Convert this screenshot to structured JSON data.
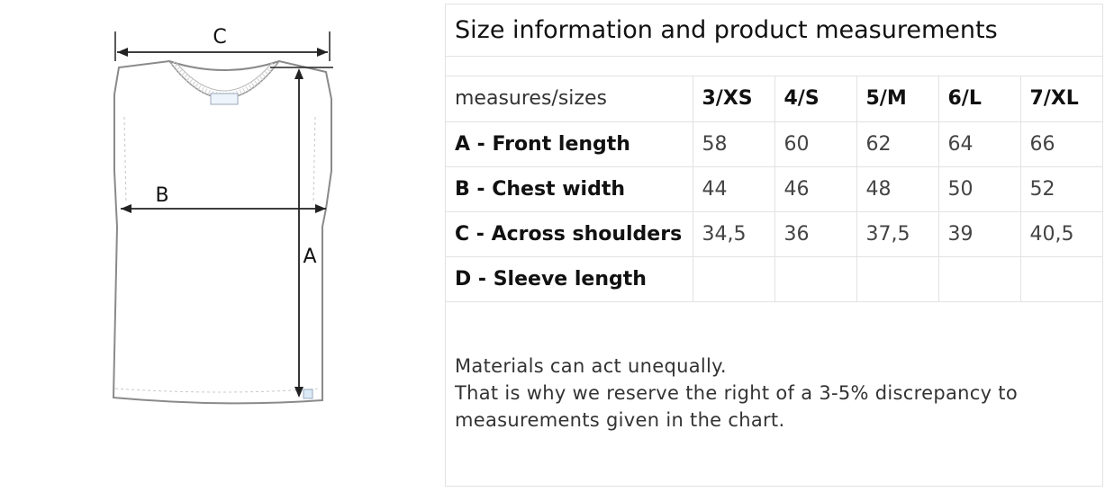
{
  "diagram": {
    "labels": {
      "c": "C",
      "b": "B",
      "a": "A"
    }
  },
  "size_table": {
    "title": "Size information and product measurements",
    "header_label": "measures/sizes",
    "sizes": [
      "3/XS",
      "4/S",
      "5/M",
      "6/L",
      "7/XL"
    ],
    "rows": [
      {
        "label": "A - Front length",
        "values": [
          "58",
          "60",
          "62",
          "64",
          "66"
        ]
      },
      {
        "label": "B - Chest width",
        "values": [
          "44",
          "46",
          "48",
          "50",
          "52"
        ]
      },
      {
        "label": "C - Across shoulders",
        "values": [
          "34,5",
          "36",
          "37,5",
          "39",
          "40,5"
        ]
      },
      {
        "label": "D - Sleeve length",
        "values": [
          "",
          "",
          "",
          "",
          ""
        ]
      }
    ]
  },
  "note": {
    "line1": "Materials can act unequally.",
    "line2": "That is why we reserve the right of a 3-5% discrepancy to",
    "line3": "measurements given in the chart."
  }
}
